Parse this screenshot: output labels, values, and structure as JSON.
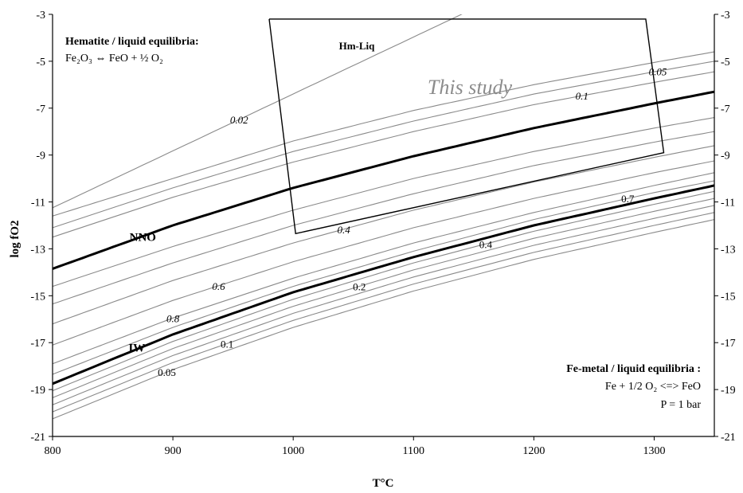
{
  "chart_data": {
    "type": "line",
    "xlabel": "T°C",
    "ylabel": "log fO2",
    "xlim": [
      800,
      1350
    ],
    "ylim": [
      -21,
      -3
    ],
    "xticks": [
      800,
      900,
      1000,
      1100,
      1200,
      1300
    ],
    "yticks": [
      -3,
      -5,
      -7,
      -9,
      -11,
      -13,
      -15,
      -17,
      -19,
      -21
    ],
    "xtick_labels": [
      "800",
      "900",
      "1000",
      "1100",
      "1200",
      "1300"
    ],
    "ytick_labels": [
      "-3",
      "-5",
      "-7",
      "-9",
      "-11",
      "-13",
      "-15",
      "-17",
      "-19",
      "-21"
    ],
    "grid": false,
    "buffers": [
      {
        "name": "NNO",
        "x": [
          800,
          900,
          1000,
          1100,
          1200,
          1300,
          1350
        ],
        "y": [
          -13.85,
          -12.0,
          -10.4,
          -9.05,
          -7.85,
          -6.8,
          -6.3
        ]
      },
      {
        "name": "IW",
        "x": [
          800,
          900,
          1000,
          1100,
          1200,
          1300,
          1350
        ],
        "y": [
          -18.75,
          -16.65,
          -14.85,
          -13.35,
          -12.0,
          -10.85,
          -10.3
        ]
      }
    ],
    "hematite_isopleths": [
      {
        "label": "0.02",
        "x": [
          800,
          1350
        ],
        "y": [
          -11.25,
          2.1
        ]
      },
      {
        "label": "",
        "x": [
          800,
          900,
          1000,
          1100,
          1200,
          1300,
          1350
        ],
        "y": [
          -11.6,
          -10.0,
          -8.4,
          -7.1,
          -6.0,
          -5.05,
          -4.6
        ]
      },
      {
        "label": "0.05",
        "x": [
          800,
          900,
          1000,
          1100,
          1200,
          1300,
          1350
        ],
        "y": [
          -12.1,
          -10.4,
          -8.85,
          -7.55,
          -6.4,
          -5.45,
          -5.0
        ]
      },
      {
        "label": "0.1",
        "x": [
          800,
          900,
          1000,
          1100,
          1200,
          1300,
          1350
        ],
        "y": [
          -12.5,
          -10.8,
          -9.3,
          -8.0,
          -6.85,
          -5.9,
          -5.45
        ]
      },
      {
        "label": "",
        "x": [
          800,
          900,
          1000,
          1100,
          1200,
          1300,
          1350
        ],
        "y": [
          -14.6,
          -12.9,
          -11.35,
          -10.0,
          -8.85,
          -7.85,
          -7.4
        ]
      },
      {
        "label": "",
        "x": [
          800,
          900,
          1000,
          1100,
          1200,
          1300,
          1350
        ],
        "y": [
          -15.35,
          -13.6,
          -12.0,
          -10.65,
          -9.45,
          -8.45,
          -8.0
        ]
      },
      {
        "label": "0.4",
        "x": [
          800,
          900,
          1000,
          1100,
          1200,
          1300,
          1350
        ],
        "y": [
          -16.2,
          -14.35,
          -12.75,
          -11.35,
          -10.15,
          -9.1,
          -8.6
        ]
      },
      {
        "label": "0.6",
        "x": [
          800,
          900,
          1000,
          1100,
          1200,
          1300,
          1350
        ],
        "y": [
          -17.1,
          -15.2,
          -13.55,
          -12.1,
          -10.85,
          -9.75,
          -9.25
        ]
      },
      {
        "label": "0.8",
        "x": [
          800,
          900,
          1000,
          1100,
          1200,
          1300,
          1350
        ],
        "y": [
          -17.9,
          -15.95,
          -14.25,
          -12.75,
          -11.45,
          -10.3,
          -9.75
        ]
      }
    ],
    "metal_isopleths": [
      {
        "label": "0.7",
        "x": [
          800,
          900,
          1000,
          1100,
          1200,
          1300,
          1350
        ],
        "y": [
          -18.35,
          -16.35,
          -14.6,
          -13.1,
          -11.75,
          -10.6,
          -10.1
        ]
      },
      {
        "label": "0.4",
        "x": [
          800,
          900,
          1000,
          1100,
          1200,
          1300,
          1350
        ],
        "y": [
          -19.05,
          -16.95,
          -15.15,
          -13.6,
          -12.25,
          -11.1,
          -10.55
        ]
      },
      {
        "label": "0.2",
        "x": [
          800,
          900,
          1000,
          1100,
          1200,
          1300,
          1350
        ],
        "y": [
          -19.35,
          -17.25,
          -15.45,
          -13.9,
          -12.55,
          -11.4,
          -10.85
        ]
      },
      {
        "label": "",
        "x": [
          800,
          900,
          1000,
          1100,
          1200,
          1300,
          1350
        ],
        "y": [
          -19.65,
          -17.55,
          -15.75,
          -14.2,
          -12.85,
          -11.7,
          -11.15
        ]
      },
      {
        "label": "0.1",
        "x": [
          800,
          900,
          1000,
          1100,
          1200,
          1300,
          1350
        ],
        "y": [
          -19.95,
          -17.85,
          -16.05,
          -14.5,
          -13.15,
          -12.0,
          -11.45
        ]
      },
      {
        "label": "0.05",
        "x": [
          800,
          900,
          1000,
          1100,
          1200,
          1300,
          1350
        ],
        "y": [
          -20.25,
          -18.15,
          -16.35,
          -14.8,
          -13.45,
          -12.3,
          -11.75
        ]
      }
    ],
    "study_region": {
      "label": "This study",
      "x": [
        980,
        1293,
        1308,
        1308,
        1002,
        1002,
        980
      ],
      "y": [
        -3.2,
        -3.2,
        -8.9,
        -8.9,
        -12.35,
        -12.35,
        -3.2
      ]
    },
    "region_label": "Hm-Liq",
    "annotations": {
      "hematite_title": "Hematite / liquid equilibria:",
      "hematite_reaction": "Fe₂O₃ ⇔ FeO + ½ O₂",
      "metal_title": "Fe-metal / liquid equilibria :",
      "metal_reaction": "Fe + 1/2 O₂ <=> FeO",
      "pressure": "P = 1 bar"
    },
    "colors": {
      "thin_line": "#8a8a8a",
      "thick_line": "#000000",
      "study_label": "#8c8c8c"
    }
  }
}
